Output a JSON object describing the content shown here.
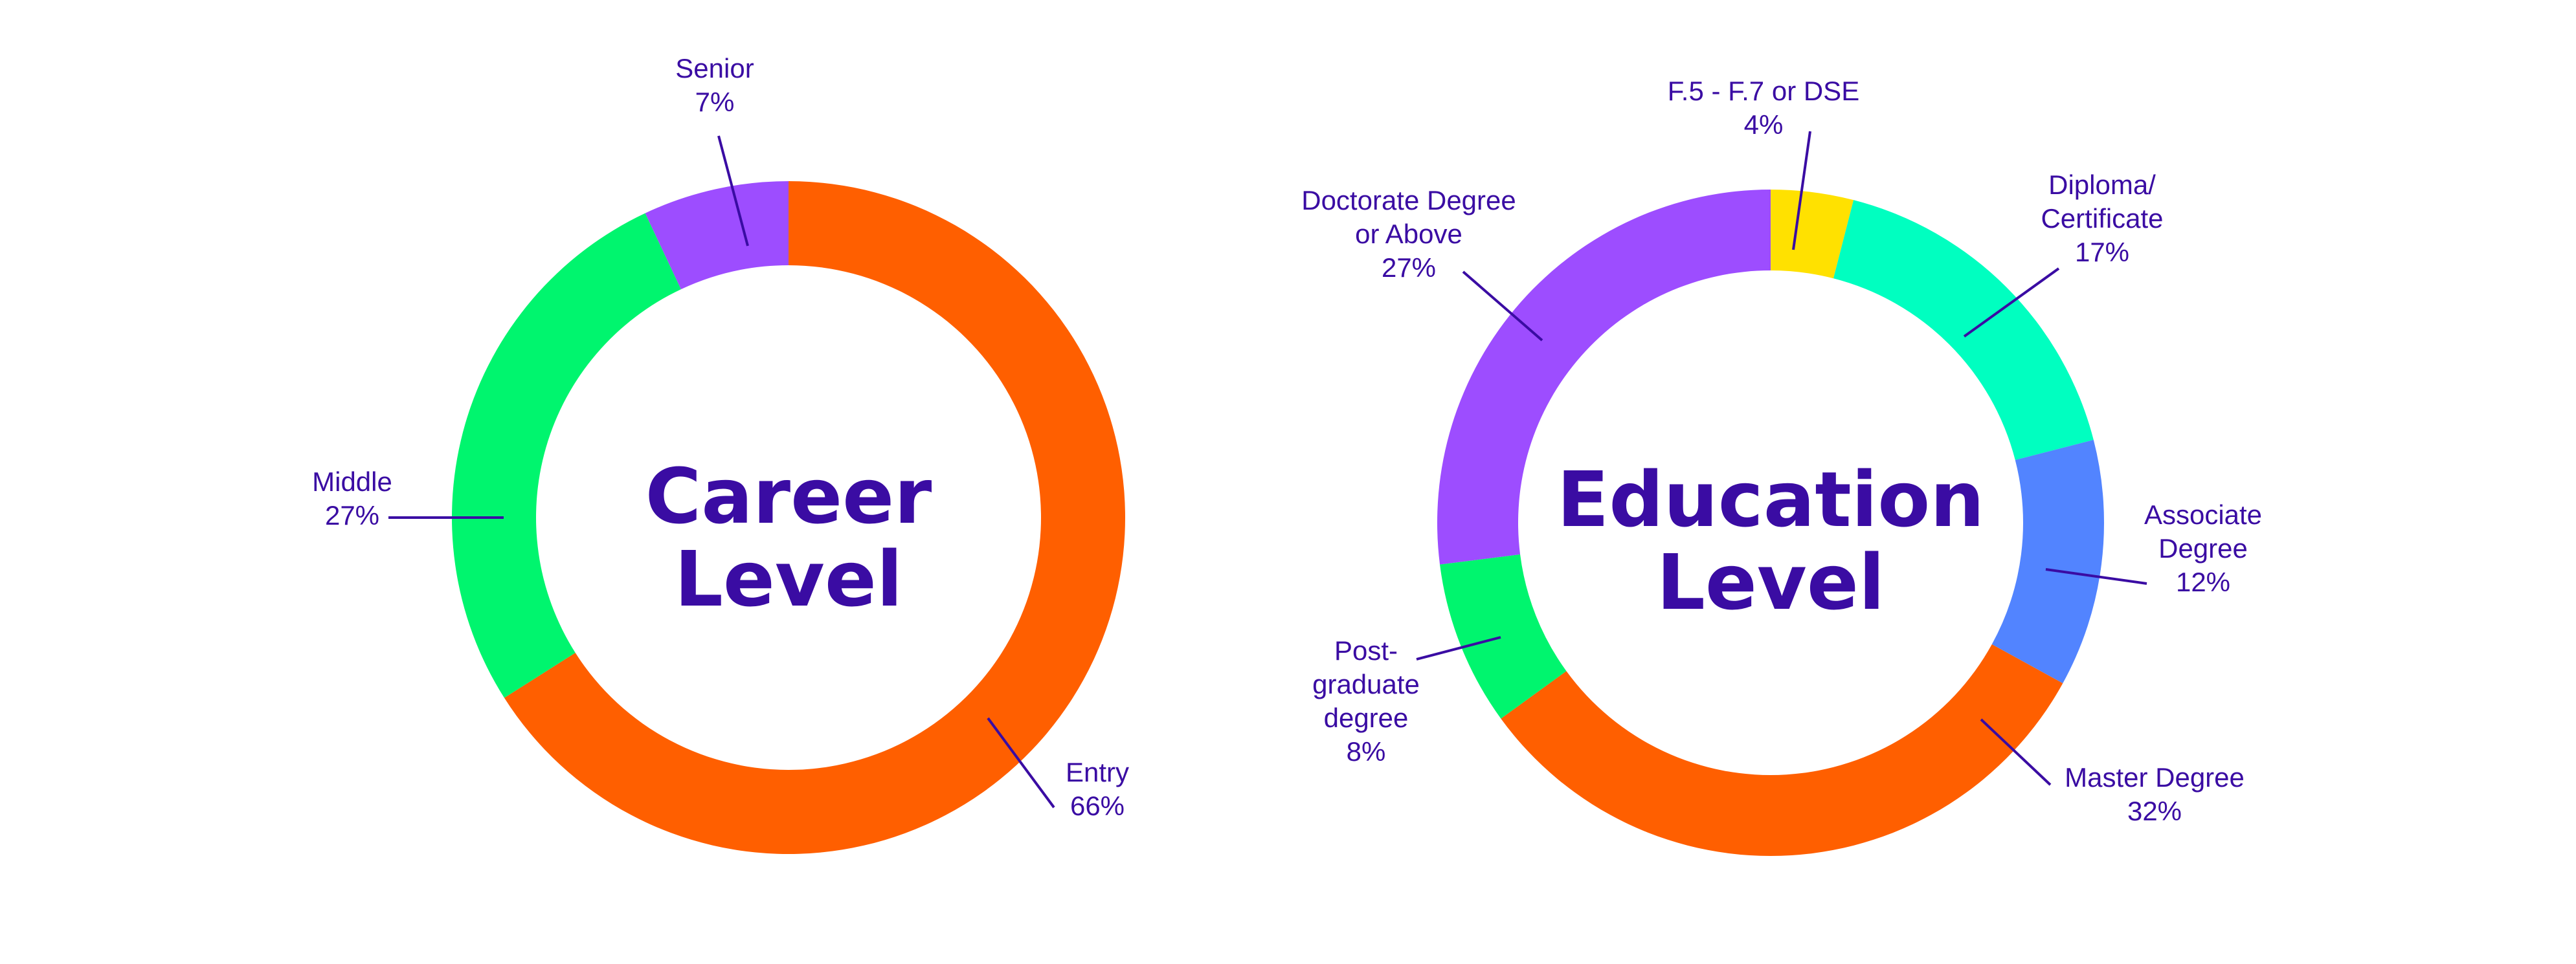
{
  "chart_data": [
    {
      "type": "pie",
      "donut": true,
      "title_lines": [
        "Career",
        "Level"
      ],
      "slices": [
        {
          "label_lines": [
            "Entry"
          ],
          "value": 66,
          "value_label": "66%",
          "color": "#ff5f00"
        },
        {
          "label_lines": [
            "Middle"
          ],
          "value": 27,
          "value_label": "27%",
          "color": "#00f56e"
        },
        {
          "label_lines": [
            "Senior"
          ],
          "value": 7,
          "value_label": "7%",
          "color": "#9d4dff"
        }
      ]
    },
    {
      "type": "pie",
      "donut": true,
      "title_lines": [
        "Education",
        "Level"
      ],
      "slices": [
        {
          "label_lines": [
            "F.5 - F.7 or DSE"
          ],
          "value": 4,
          "value_label": "4%",
          "color": "#ffe100"
        },
        {
          "label_lines": [
            "Diploma/",
            "Certificate"
          ],
          "value": 17,
          "value_label": "17%",
          "color": "#00ffc0"
        },
        {
          "label_lines": [
            "Associate",
            "Degree"
          ],
          "value": 12,
          "value_label": "12%",
          "color": "#5284ff"
        },
        {
          "label_lines": [
            "Master Degree"
          ],
          "value": 32,
          "value_label": "32%",
          "color": "#ff5f00"
        },
        {
          "label_lines": [
            "Post-",
            "graduate",
            "degree"
          ],
          "value": 8,
          "value_label": "8%",
          "color": "#00f56e"
        },
        {
          "label_lines": [
            "Doctorate Degree",
            "or Above"
          ],
          "value": 27,
          "value_label": "27%",
          "color": "#9d4dff"
        }
      ]
    }
  ]
}
